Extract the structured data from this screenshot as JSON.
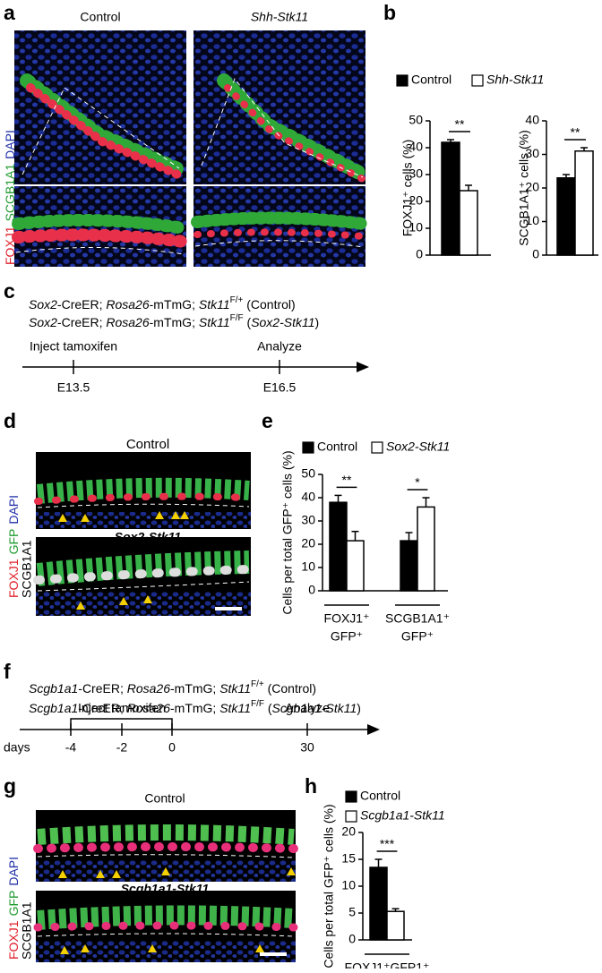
{
  "figure": {
    "a": {
      "letter": "a",
      "titles": [
        "Control",
        "Shh-Stk11"
      ],
      "stains": [
        "FOXJ1",
        "SCGB1A1",
        "DAPI"
      ]
    },
    "b": {
      "letter": "b"
    },
    "c": {
      "letter": "c",
      "genotypes": [
        [
          {
            "text": "Sox2",
            "style": "i"
          },
          {
            "text": "-CreER; ",
            "style": "n"
          },
          {
            "text": "Rosa26",
            "style": "i"
          },
          {
            "text": "-mTmG; ",
            "style": "n"
          },
          {
            "text": "Stk11",
            "style": "i"
          },
          {
            "text": "F/+",
            "style": "sup"
          },
          {
            "text": " (Control)",
            "style": "n"
          }
        ],
        [
          {
            "text": "Sox2",
            "style": "i"
          },
          {
            "text": "-CreER; ",
            "style": "n"
          },
          {
            "text": "Rosa26",
            "style": "i"
          },
          {
            "text": "-mTmG; ",
            "style": "n"
          },
          {
            "text": "Stk11",
            "style": "i"
          },
          {
            "text": "F/F",
            "style": "sup"
          },
          {
            "text": " (",
            "style": "n"
          },
          {
            "text": "Sox2-Stk11",
            "style": "i"
          },
          {
            "text": ")",
            "style": "n"
          }
        ]
      ],
      "timeline": {
        "events": [
          "Inject tamoxifen",
          "Analyze"
        ],
        "ticks": [
          "E13.5",
          "E16.5"
        ]
      }
    },
    "d": {
      "letter": "d",
      "titles": [
        "Control",
        "Sox2-Stk11"
      ],
      "stains": [
        "FOXJ1",
        "GFP",
        "DAPI",
        "SCGB1A1"
      ]
    },
    "e": {
      "letter": "e"
    },
    "f": {
      "letter": "f",
      "genotypes": [
        [
          {
            "text": "Scgb1a1",
            "style": "i"
          },
          {
            "text": "-CreER; ",
            "style": "n"
          },
          {
            "text": "Rosa26",
            "style": "i"
          },
          {
            "text": "-mTmG; ",
            "style": "n"
          },
          {
            "text": "Stk11",
            "style": "i"
          },
          {
            "text": "F/+",
            "style": "sup"
          },
          {
            "text": " (Control)",
            "style": "n"
          }
        ],
        [
          {
            "text": "Scgb1a1",
            "style": "i"
          },
          {
            "text": "-CreER; ",
            "style": "n"
          },
          {
            "text": "Rosa26",
            "style": "i"
          },
          {
            "text": "-mTmG; ",
            "style": "n"
          },
          {
            "text": "Stk11",
            "style": "i"
          },
          {
            "text": "F/F",
            "style": "sup"
          },
          {
            "text": " (",
            "style": "n"
          },
          {
            "text": "Scgb1a1-Stk11",
            "style": "i"
          },
          {
            "text": ")",
            "style": "n"
          }
        ]
      ],
      "timeline": {
        "unit": "days",
        "events": [
          "Inject tamoxifen",
          "Analyze"
        ],
        "ticks": [
          -4,
          -2,
          0,
          30
        ]
      }
    },
    "g": {
      "letter": "g",
      "titles": [
        "Control",
        "Scgb1a1-Stk11"
      ],
      "stains": [
        "FOXJ1",
        "GFP",
        "DAPI",
        "SCGB1A1"
      ]
    },
    "h": {
      "letter": "h"
    }
  },
  "chart_data": [
    {
      "type": "bar",
      "ylabel": "FOXJ1⁺ cells (%)",
      "categories": [
        null
      ],
      "series": [
        {
          "name": "Control",
          "color": "#000000",
          "values": [
            42
          ],
          "errors": [
            1
          ]
        },
        {
          "name": "Shh-Stk11",
          "label_style": "italic",
          "color": "#ffffff",
          "values": [
            24
          ],
          "errors": [
            2
          ]
        }
      ],
      "annotations": [
        "**"
      ],
      "legend": "row",
      "ylim": [
        0,
        50
      ],
      "yticks": [
        0,
        10,
        20,
        30,
        40,
        50
      ]
    },
    {
      "type": "bar",
      "ylabel": "SCGB1A1⁺ cells (%)",
      "categories": [
        null
      ],
      "series": [
        {
          "color": "#000000",
          "values": [
            23
          ],
          "errors": [
            1
          ]
        },
        {
          "color": "#ffffff",
          "values": [
            31
          ],
          "errors": [
            1
          ]
        }
      ],
      "annotations": [
        "**"
      ],
      "ylim": [
        0,
        40
      ],
      "yticks": [
        0,
        10,
        20,
        30,
        40
      ]
    },
    {
      "type": "bar",
      "ylabel": "Cells per total GFP⁺ cells (%)",
      "categories": [
        [
          "FOXJ1⁺",
          "GFP⁺"
        ],
        [
          "SCGB1A1⁺",
          "GFP⁺"
        ]
      ],
      "series": [
        {
          "name": "Control",
          "color": "#000000",
          "values": [
            38,
            21.5
          ],
          "errors": [
            3,
            3.5
          ]
        },
        {
          "name": "Sox2-Stk11",
          "label_style": "italic",
          "color": "#ffffff",
          "values": [
            21.5,
            36
          ],
          "errors": [
            4,
            4
          ]
        }
      ],
      "annotations": [
        "**",
        "*"
      ],
      "legend": "row",
      "ylim": [
        0,
        50
      ],
      "yticks": [
        0,
        10,
        20,
        30,
        40,
        50
      ]
    },
    {
      "type": "bar",
      "ylabel": "Cells per total GFP⁺ cells (%)",
      "categories": [
        [
          "FOXJ1⁺GFP1⁺"
        ]
      ],
      "series": [
        {
          "name": "Control",
          "color": "#000000",
          "values": [
            13.5
          ],
          "errors": [
            1.5
          ]
        },
        {
          "name": "Scgb1a1-Stk11",
          "label_style": "italic",
          "color": "#ffffff",
          "values": [
            5.3
          ],
          "errors": [
            0.5
          ]
        }
      ],
      "annotations": [
        "***"
      ],
      "legend": "column",
      "ylim": [
        0,
        20
      ],
      "yticks": [
        0,
        5,
        10,
        15,
        20
      ]
    }
  ]
}
